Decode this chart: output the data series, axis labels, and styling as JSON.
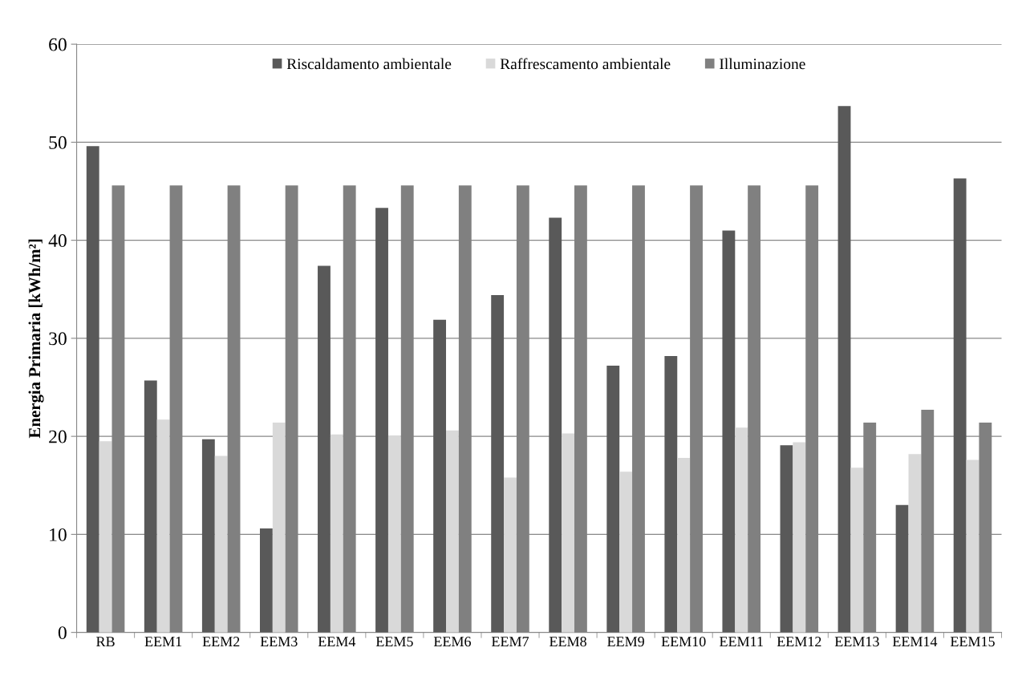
{
  "chart_data": {
    "type": "bar",
    "ylabel": "Energia Primaria [kWh/m²]",
    "categories": [
      "RB",
      "EEM1",
      "EEM2",
      "EEM3",
      "EEM4",
      "EEM5",
      "EEM6",
      "EEM7",
      "EEM8",
      "EEM9",
      "EEM10",
      "EEM11",
      "EEM12",
      "EEM13",
      "EEM14",
      "EEM15"
    ],
    "series": [
      {
        "name": "Riscaldamento ambientale",
        "color": "#595959",
        "values": [
          49.6,
          25.7,
          19.7,
          10.6,
          37.4,
          43.3,
          31.9,
          34.4,
          42.3,
          27.2,
          28.2,
          41.0,
          19.1,
          53.7,
          13.0,
          46.3
        ]
      },
      {
        "name": "Raffrescamento ambientale",
        "color": "#d9d9d9",
        "values": [
          19.5,
          21.7,
          18.0,
          21.4,
          20.2,
          20.1,
          20.6,
          15.8,
          20.3,
          16.4,
          17.8,
          20.9,
          19.4,
          16.8,
          18.2,
          17.6
        ]
      },
      {
        "name": "Illuminazione",
        "color": "#808080",
        "values": [
          45.6,
          45.6,
          45.6,
          45.6,
          45.6,
          45.6,
          45.6,
          45.6,
          45.6,
          45.6,
          45.6,
          45.6,
          45.6,
          21.4,
          22.7,
          21.4
        ]
      }
    ],
    "ylim": [
      0,
      60
    ],
    "yticks": [
      0,
      10,
      20,
      30,
      40,
      50,
      60
    ],
    "grid": "y",
    "legend": "top"
  }
}
